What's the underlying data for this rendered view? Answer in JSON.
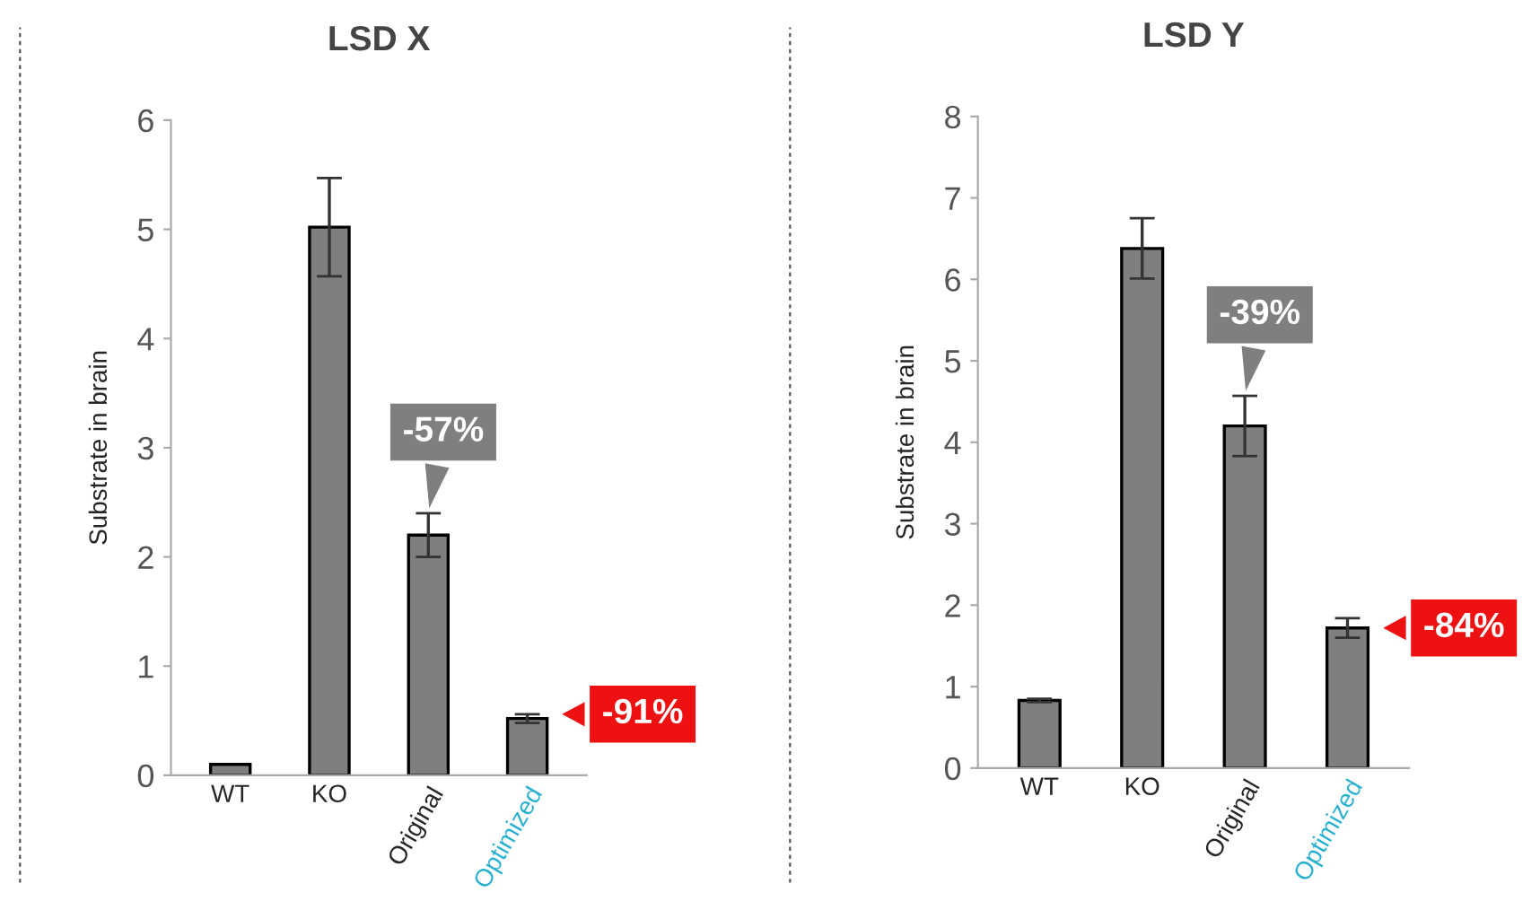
{
  "chart_data": [
    {
      "type": "bar",
      "title": "LSD X",
      "ylabel": "Substrate in brain",
      "categories": [
        "WT",
        "KO",
        "Original",
        "Optimized"
      ],
      "values": [
        0.1,
        5.02,
        2.2,
        0.52
      ],
      "errors": [
        null,
        0.45,
        0.2,
        0.04
      ],
      "color": "#7f7f7f",
      "ylim": [
        0,
        6
      ],
      "yticks": [
        0,
        1,
        2,
        3,
        4,
        5,
        6
      ],
      "grid": false,
      "annotations": [
        {
          "text": "-57%",
          "x": "Original",
          "y": 2.4
        },
        {
          "text": "-91%",
          "x": "Optimized",
          "y": 0.56
        }
      ]
    },
    {
      "type": "bar",
      "title": "LSD Y",
      "ylabel": "Substrate in brain",
      "categories": [
        "WT",
        "KO",
        "Original",
        "Optimized"
      ],
      "values": [
        0.83,
        6.38,
        4.2,
        1.72
      ],
      "errors": [
        0.02,
        0.37,
        0.37,
        0.12
      ],
      "color": "#7f7f7f",
      "ylim": [
        0,
        8
      ],
      "yticks": [
        0,
        1,
        2,
        3,
        4,
        5,
        6,
        7,
        8
      ],
      "grid": false,
      "annotations": [
        {
          "text": "-39%",
          "x": "Original",
          "y": 4.57
        },
        {
          "text": "-84%",
          "x": "Optimized",
          "y": 1.72
        }
      ]
    }
  ]
}
